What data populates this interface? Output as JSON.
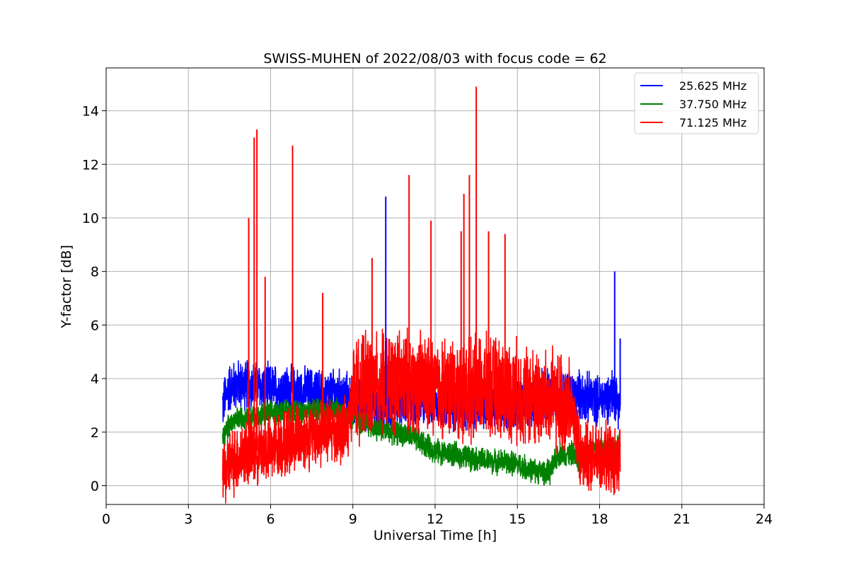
{
  "chart_data": {
    "type": "line",
    "title": "SWISS-MUHEN of 2022/08/03 with focus code = 62",
    "xlabel": "Universal Time [h]",
    "ylabel": "Y-factor [dB]",
    "xlim": [
      0,
      24
    ],
    "ylim": [
      -0.7,
      15.6
    ],
    "xticks": [
      0,
      3,
      6,
      9,
      12,
      15,
      18,
      21,
      24
    ],
    "yticks": [
      0,
      2,
      4,
      6,
      8,
      10,
      12,
      14
    ],
    "grid": true,
    "legend_position": "top-right",
    "series": [
      {
        "name": "25.625 MHz",
        "color": "#0000ff",
        "x": [
          4.25,
          4.5,
          5.0,
          5.5,
          6.0,
          6.5,
          7.0,
          7.5,
          8.0,
          8.5,
          8.8,
          9.0,
          9.5,
          10.0,
          10.2,
          10.5,
          11.0,
          11.5,
          12.0,
          12.5,
          13.0,
          13.5,
          14.0,
          14.5,
          15.0,
          15.5,
          16.0,
          16.5,
          17.0,
          17.3,
          17.5,
          18.0,
          18.3,
          18.5,
          18.75
        ],
        "y": [
          3.0,
          3.7,
          3.8,
          3.7,
          3.6,
          3.6,
          3.5,
          3.5,
          3.4,
          3.4,
          3.3,
          3.1,
          3.0,
          3.0,
          3.0,
          3.1,
          3.2,
          3.2,
          3.1,
          3.0,
          3.0,
          3.0,
          3.0,
          3.0,
          3.1,
          3.1,
          3.4,
          3.4,
          3.3,
          3.4,
          3.3,
          3.2,
          3.3,
          3.5,
          3.0
        ]
      },
      {
        "name": "37.750 MHz",
        "color": "#008000",
        "x": [
          4.25,
          4.5,
          5.0,
          5.5,
          6.0,
          6.5,
          7.0,
          7.5,
          8.0,
          8.5,
          8.8,
          9.0,
          9.5,
          10.0,
          10.5,
          11.0,
          11.5,
          12.0,
          12.5,
          13.0,
          13.5,
          14.0,
          14.5,
          15.0,
          15.5,
          16.0,
          16.2,
          16.5,
          17.0,
          17.3,
          17.5,
          18.0,
          18.3,
          18.5,
          18.75
        ],
        "y": [
          1.7,
          2.3,
          2.6,
          2.6,
          2.7,
          2.8,
          2.8,
          2.8,
          2.8,
          2.8,
          2.7,
          2.5,
          2.3,
          2.1,
          2.0,
          1.9,
          1.6,
          1.3,
          1.2,
          1.1,
          1.0,
          0.9,
          0.9,
          0.8,
          0.6,
          0.5,
          0.5,
          1.2,
          1.2,
          0.9,
          1.2,
          1.4,
          1.4,
          1.3,
          1.5
        ]
      },
      {
        "name": "71.125 MHz",
        "color": "#ff0000",
        "x": [
          4.25,
          4.5,
          5.0,
          5.5,
          6.0,
          6.5,
          7.0,
          7.5,
          8.0,
          8.5,
          8.8,
          9.0,
          9.5,
          10.0,
          10.5,
          11.0,
          11.5,
          12.0,
          12.5,
          13.0,
          13.5,
          14.0,
          14.5,
          15.0,
          15.5,
          16.0,
          16.5,
          17.0,
          17.3,
          17.5,
          18.0,
          18.3,
          18.5,
          18.75
        ],
        "y": [
          0.4,
          0.8,
          1.2,
          1.3,
          1.4,
          1.6,
          1.8,
          1.9,
          2.0,
          2.1,
          2.0,
          3.5,
          3.7,
          3.8,
          3.9,
          3.9,
          3.8,
          3.7,
          3.6,
          3.6,
          3.6,
          3.7,
          3.6,
          3.5,
          3.3,
          3.2,
          3.1,
          2.8,
          1.3,
          1.0,
          1.0,
          1.0,
          0.9,
          0.8
        ]
      }
    ],
    "peaks": [
      {
        "series": 2,
        "x": 5.2,
        "y": 10.0
      },
      {
        "series": 2,
        "x": 5.4,
        "y": 13.0
      },
      {
        "series": 2,
        "x": 5.5,
        "y": 13.3
      },
      {
        "series": 2,
        "x": 5.8,
        "y": 7.8
      },
      {
        "series": 2,
        "x": 6.8,
        "y": 12.7
      },
      {
        "series": 2,
        "x": 7.9,
        "y": 7.2
      },
      {
        "series": 2,
        "x": 9.7,
        "y": 8.5
      },
      {
        "series": 2,
        "x": 11.05,
        "y": 11.6
      },
      {
        "series": 2,
        "x": 11.85,
        "y": 9.9
      },
      {
        "series": 2,
        "x": 12.95,
        "y": 9.5
      },
      {
        "series": 2,
        "x": 13.05,
        "y": 10.9
      },
      {
        "series": 2,
        "x": 13.25,
        "y": 11.6
      },
      {
        "series": 2,
        "x": 13.5,
        "y": 14.9
      },
      {
        "series": 2,
        "x": 13.95,
        "y": 9.5
      },
      {
        "series": 2,
        "x": 14.55,
        "y": 9.4
      },
      {
        "series": 0,
        "x": 10.2,
        "y": 10.8
      },
      {
        "series": 0,
        "x": 18.55,
        "y": 8.0
      },
      {
        "series": 0,
        "x": 18.75,
        "y": 5.5
      }
    ],
    "legend_entries": [
      "25.625 MHz",
      "37.750 MHz",
      "71.125 MHz"
    ]
  }
}
